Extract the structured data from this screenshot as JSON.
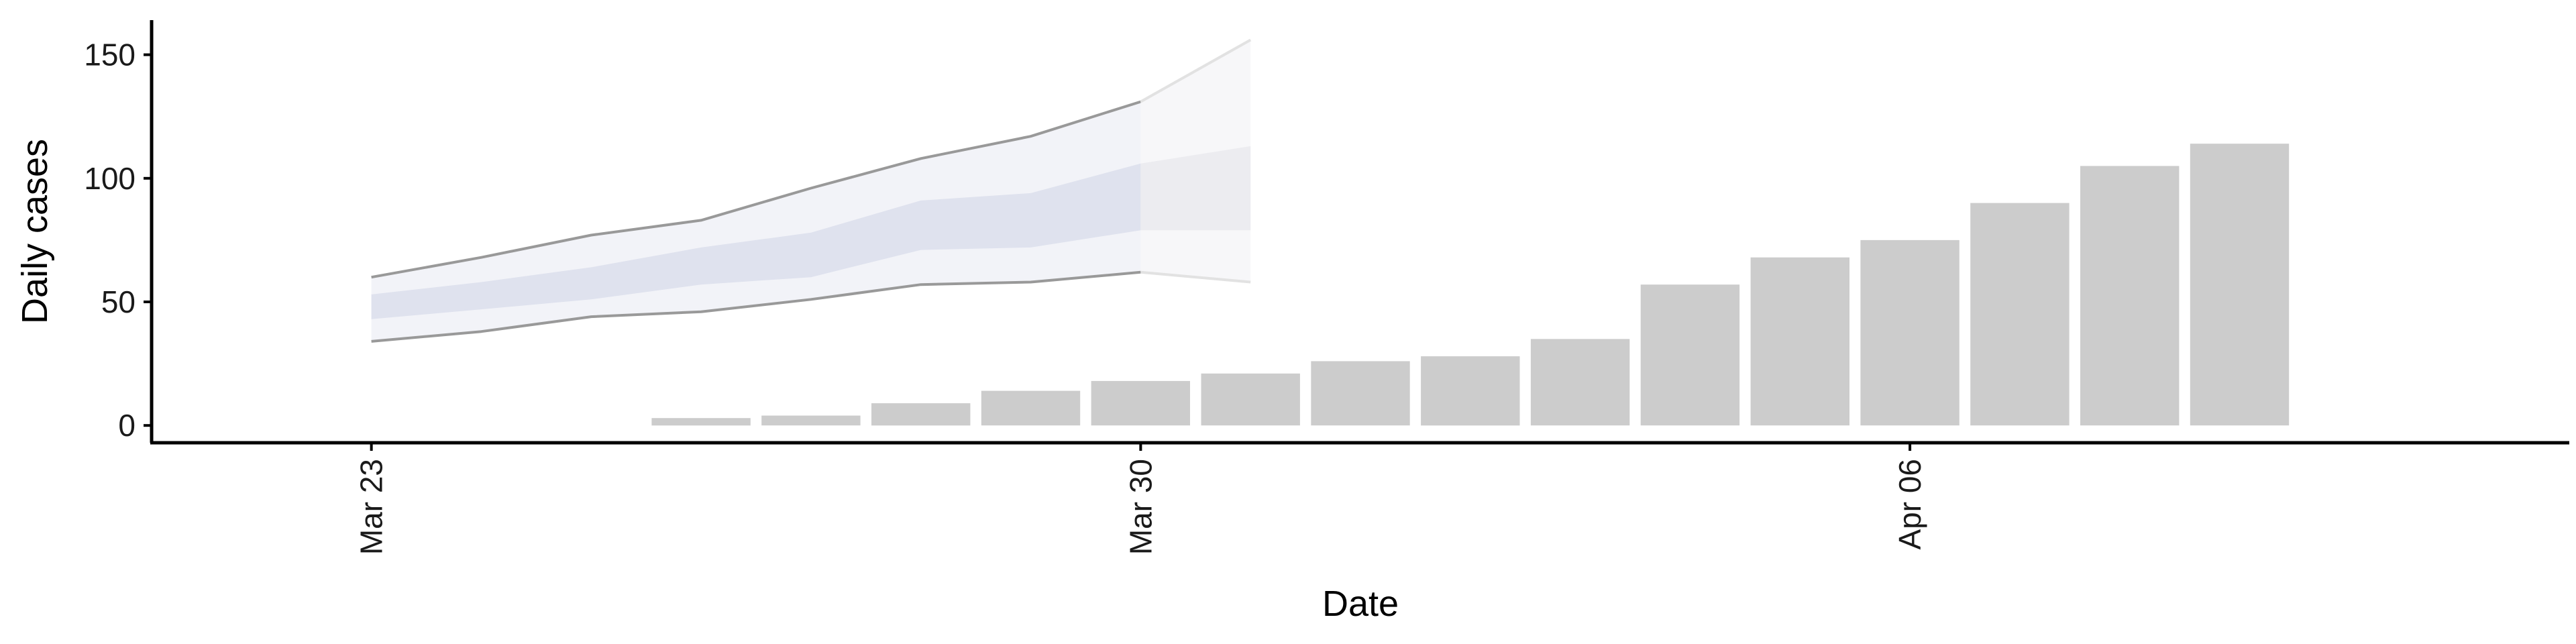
{
  "chart_data": {
    "type": "bar",
    "xlabel": "Date",
    "ylabel": "Daily cases",
    "ylim": [
      -7,
      164
    ],
    "xlim": [
      "2020-03-21",
      "2020-04-12"
    ],
    "y_ticks": [
      0,
      50,
      100,
      150
    ],
    "x_ticks": [
      {
        "date": "2020-03-23",
        "label": "Mar 23"
      },
      {
        "date": "2020-03-30",
        "label": "Mar 30"
      },
      {
        "date": "2020-04-06",
        "label": "Apr 06"
      }
    ],
    "grid": false,
    "legend": "none",
    "colors": {
      "bar": "#cccccc",
      "band_outer": "#f2f3f8",
      "band_inner": "#dfe2ee",
      "band_forecast_outer": "#f7f7f9",
      "band_forecast_inner": "#ececf0",
      "outer_line": "#999999",
      "outer_line_forecast": "#e2e2e2",
      "axis": "#000000"
    },
    "bars": [
      {
        "date": "2020-03-26",
        "value": 3
      },
      {
        "date": "2020-03-27",
        "value": 4
      },
      {
        "date": "2020-03-28",
        "value": 9
      },
      {
        "date": "2020-03-29",
        "value": 14
      },
      {
        "date": "2020-03-30",
        "value": 18
      },
      {
        "date": "2020-03-31",
        "value": 21
      },
      {
        "date": "2020-04-01",
        "value": 26
      },
      {
        "date": "2020-04-02",
        "value": 28
      },
      {
        "date": "2020-04-03",
        "value": 35
      },
      {
        "date": "2020-04-04",
        "value": 57
      },
      {
        "date": "2020-04-05",
        "value": 68
      },
      {
        "date": "2020-04-06",
        "value": 75
      },
      {
        "date": "2020-04-07",
        "value": 90
      },
      {
        "date": "2020-04-08",
        "value": 105
      },
      {
        "date": "2020-04-09",
        "value": 114
      }
    ],
    "estimate_band": {
      "dates": [
        "2020-03-23",
        "2020-03-24",
        "2020-03-25",
        "2020-03-26",
        "2020-03-27",
        "2020-03-28",
        "2020-03-29",
        "2020-03-30",
        "2020-03-31"
      ],
      "upper_90": [
        60,
        68,
        77,
        83,
        96,
        108,
        117,
        131,
        156
      ],
      "upper_50": [
        53,
        58,
        64,
        72,
        78,
        91,
        94,
        106,
        113
      ],
      "lower_50": [
        43,
        47,
        51,
        57,
        60,
        71,
        72,
        79,
        79
      ],
      "lower_90": [
        34,
        38,
        44,
        46,
        51,
        57,
        58,
        62,
        58
      ],
      "forecast_from": "2020-03-30"
    }
  }
}
